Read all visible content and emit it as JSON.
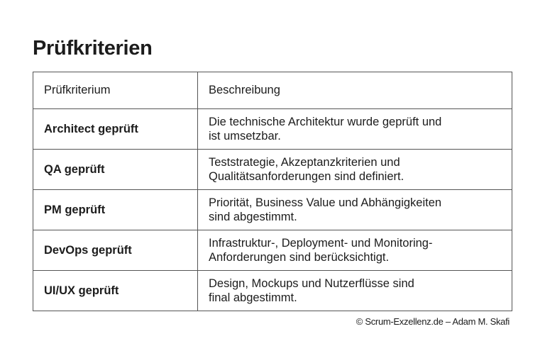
{
  "title": "Prüfkriterien",
  "table": {
    "headers": [
      "Prüfkriterium",
      "Beschreibung"
    ],
    "rows": [
      {
        "criterion": "Architect geprüft",
        "lines": [
          "Die technische Architektur wurde geprüft und",
          "ist umsetzbar."
        ]
      },
      {
        "criterion": "QA geprüft",
        "lines": [
          "Teststrategie, Akzeptanzkriterien und",
          "Qualitätsanforderungen sind definiert."
        ]
      },
      {
        "criterion": "PM geprüft",
        "lines": [
          "Priorität, Business Value und Abhängigkeiten",
          "sind abgestimmt."
        ]
      },
      {
        "criterion": "DevOps geprüft",
        "lines": [
          "Infrastruktur-, Deployment- und Monitoring-",
          "Anforderungen sind berücksichtigt."
        ]
      },
      {
        "criterion": "UI/UX geprüft",
        "lines": [
          "Design, Mockups und Nutzerflüsse sind",
          "final abgestimmt."
        ]
      }
    ]
  },
  "footer": "© Scrum-Exzellenz.de – Adam M. Skafi"
}
